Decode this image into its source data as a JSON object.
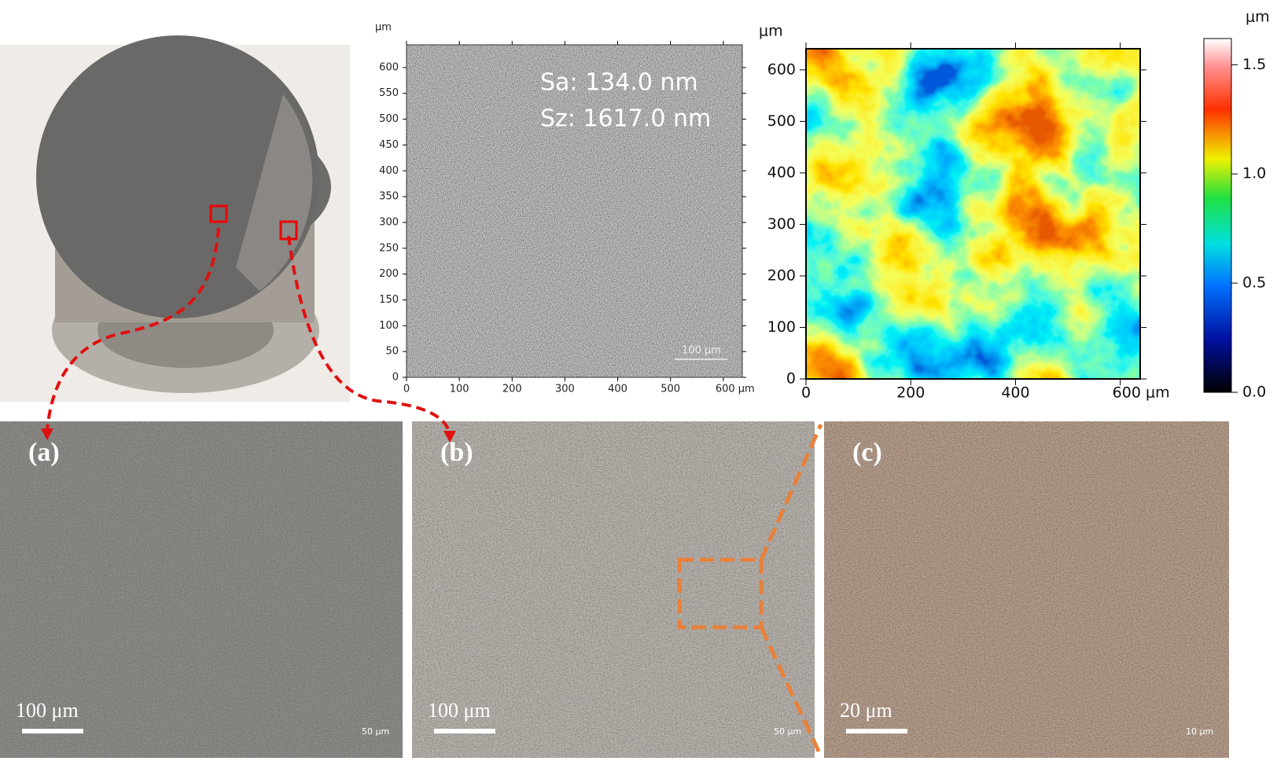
{
  "sem_map": {
    "unit": "μm",
    "xlim": [
      0,
      636
    ],
    "ylim": [
      0,
      644
    ],
    "xticks": [
      0,
      100,
      200,
      300,
      400,
      500,
      {
        "value": 600,
        "label": "600 μm"
      }
    ],
    "yticks": [
      0,
      50,
      100,
      150,
      200,
      250,
      300,
      350,
      400,
      450,
      500,
      550,
      600
    ],
    "scale_bar": "100 μm",
    "roughness": [
      "Sa: 134.0 nm",
      "Sz: 1617.0 nm"
    ]
  },
  "height_map": {
    "unit": "μm",
    "xlim": [
      0,
      638
    ],
    "ylim": [
      0,
      641
    ],
    "xticks": [
      0,
      200,
      400,
      {
        "value": 600,
        "label": "600 μm"
      }
    ],
    "yticks": [
      0,
      100,
      200,
      300,
      400,
      500,
      600
    ]
  },
  "colorbar": {
    "unit": "μm",
    "lim": [
      0,
      1.62
    ],
    "ticks": [
      {
        "value": 0,
        "label": "0.0"
      },
      0.5,
      {
        "value": 1,
        "label": "1.0"
      },
      1.5
    ]
  },
  "panels": [
    {
      "label": "(a)",
      "scale_bar": "100 μm",
      "instrument_scale": "50 μm"
    },
    {
      "label": "(b)",
      "scale_bar": "100 μm",
      "instrument_scale": "50 μm"
    },
    {
      "label": "(c)",
      "scale_bar": "20 μm",
      "instrument_scale": "10 μm"
    }
  ]
}
